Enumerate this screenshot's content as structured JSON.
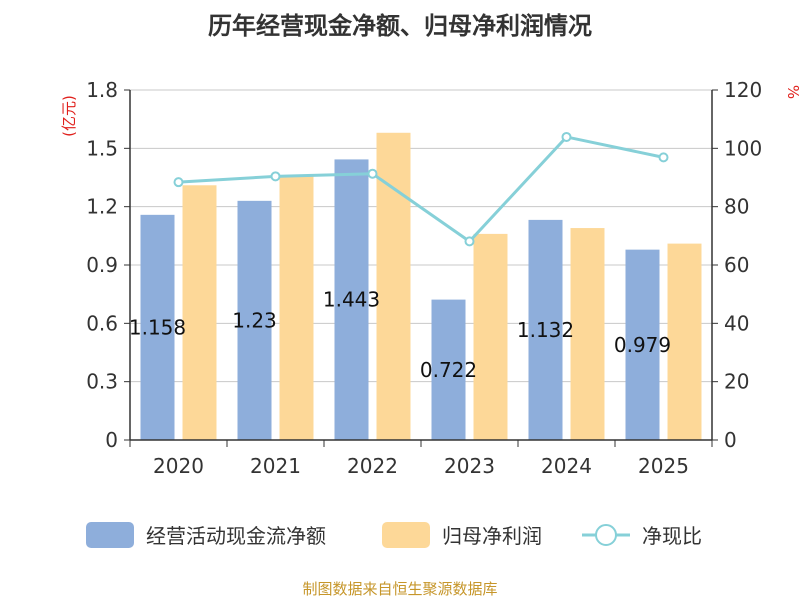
{
  "chart_data": {
    "type": "bar",
    "title": "历年经营现金净额、归母净利润情况",
    "categories": [
      "2020",
      "2021",
      "2022",
      "2023",
      "2024",
      "2025"
    ],
    "left_axis": {
      "unit": "(亿元)",
      "ylim": [
        0,
        1.8
      ],
      "ticks": [
        "0",
        "0.3",
        "0.6",
        "0.9",
        "1.2",
        "1.5",
        "1.8"
      ]
    },
    "right_axis": {
      "unit": "%",
      "ylim": [
        0,
        120
      ],
      "ticks": [
        "0",
        "20",
        "40",
        "60",
        "80",
        "100",
        "120"
      ]
    },
    "series": [
      {
        "name": "经营活动现金流净额",
        "type": "bar",
        "axis": "left",
        "color": "#8eaedb",
        "values": [
          1.158,
          1.23,
          1.443,
          0.722,
          1.132,
          0.979
        ],
        "labels": [
          "1.158",
          "1.23",
          "1.443",
          "0.722",
          "1.132",
          "0.979"
        ]
      },
      {
        "name": "归母净利润",
        "type": "bar",
        "axis": "left",
        "color": "#fdd898",
        "values": [
          1.31,
          1.36,
          1.58,
          1.06,
          1.09,
          1.01
        ]
      },
      {
        "name": "净现比",
        "type": "line",
        "axis": "right",
        "color": "#86d0d8",
        "values": [
          88.4,
          90.4,
          91.3,
          68.1,
          103.9,
          96.9
        ]
      }
    ],
    "grid": true,
    "legend_position": "bottom"
  },
  "footer": {
    "source": "制图数据来自恒生聚源数据库"
  }
}
